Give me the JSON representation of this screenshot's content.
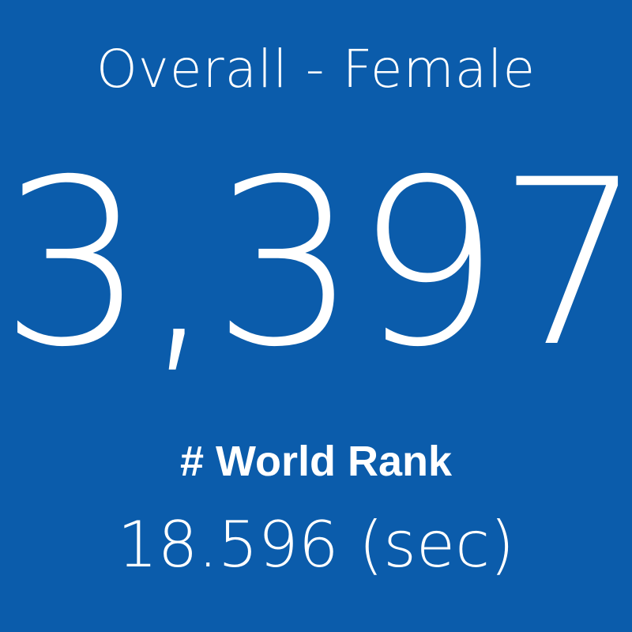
{
  "tile": {
    "title": "Overall - Female",
    "value": "3,397",
    "label": "# World Rank",
    "time": "18.596 (sec)"
  }
}
